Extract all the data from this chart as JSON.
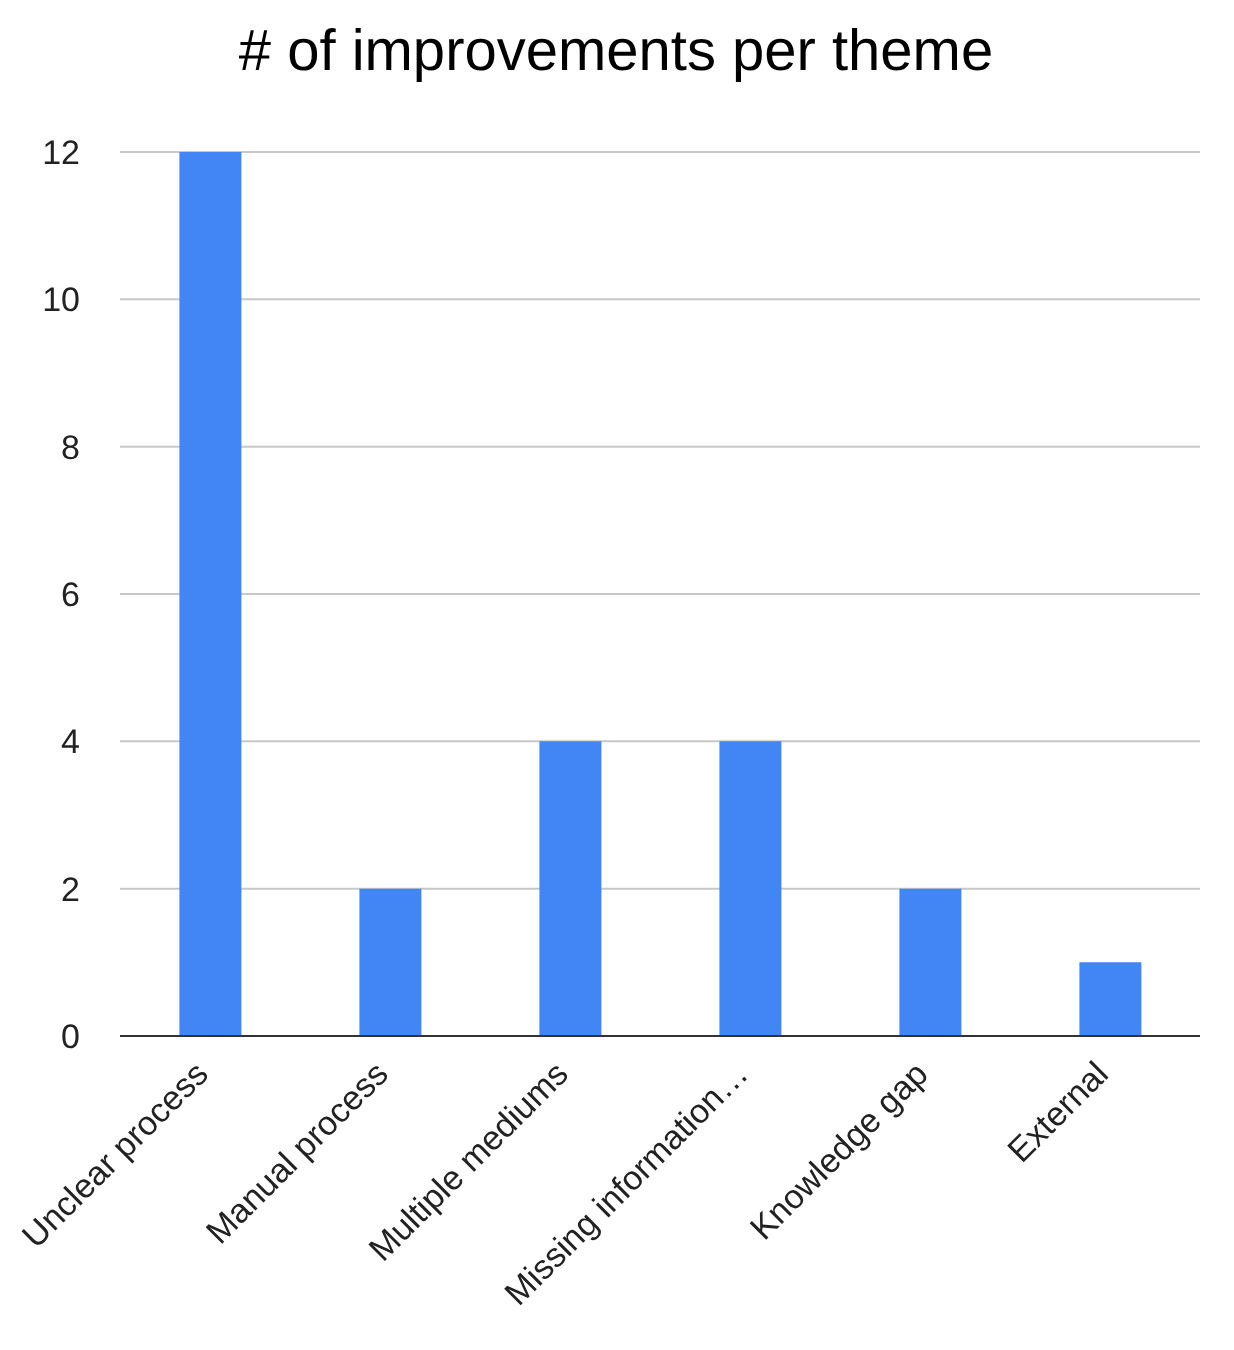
{
  "chart_data": {
    "type": "bar",
    "title": "# of improvements per theme",
    "categories": [
      "Unclear process",
      "Manual process",
      "Multiple mediums",
      "Missing information…",
      "Knowledge gap",
      "External"
    ],
    "values": [
      12,
      2,
      4,
      4,
      2,
      1
    ],
    "color": "#4285f4",
    "ylim": [
      0,
      12
    ],
    "yticks": [
      0,
      2,
      4,
      6,
      8,
      10,
      12
    ],
    "grid": "y",
    "legend": false
  }
}
